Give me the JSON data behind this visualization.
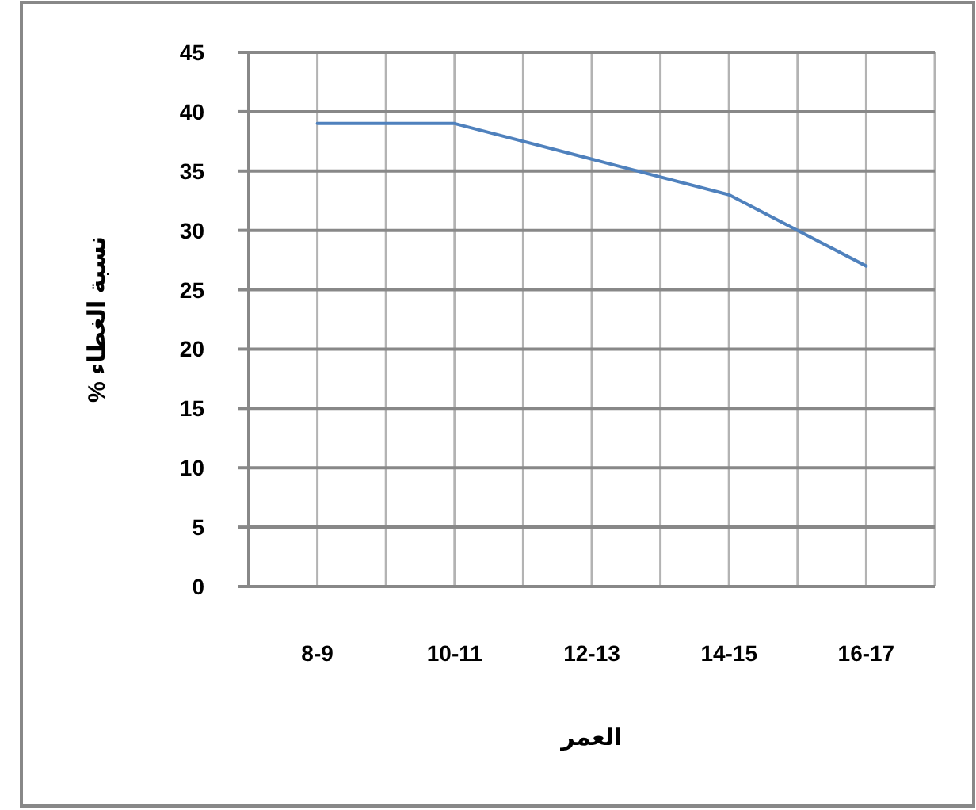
{
  "chart_data": {
    "type": "line",
    "xlabel": "العمر",
    "ylabel": "نسبة الغطاء %",
    "categories": [
      "8-9",
      "10-11",
      "12-13",
      "14-15",
      "16-17"
    ],
    "series": [
      {
        "color": "#4f81bd",
        "values": [
          39,
          39,
          36,
          33,
          27
        ]
      }
    ],
    "ylim": [
      0,
      45
    ],
    "yticks": [
      0,
      5,
      10,
      15,
      20,
      25,
      30,
      35,
      40,
      45
    ],
    "grid": true
  }
}
